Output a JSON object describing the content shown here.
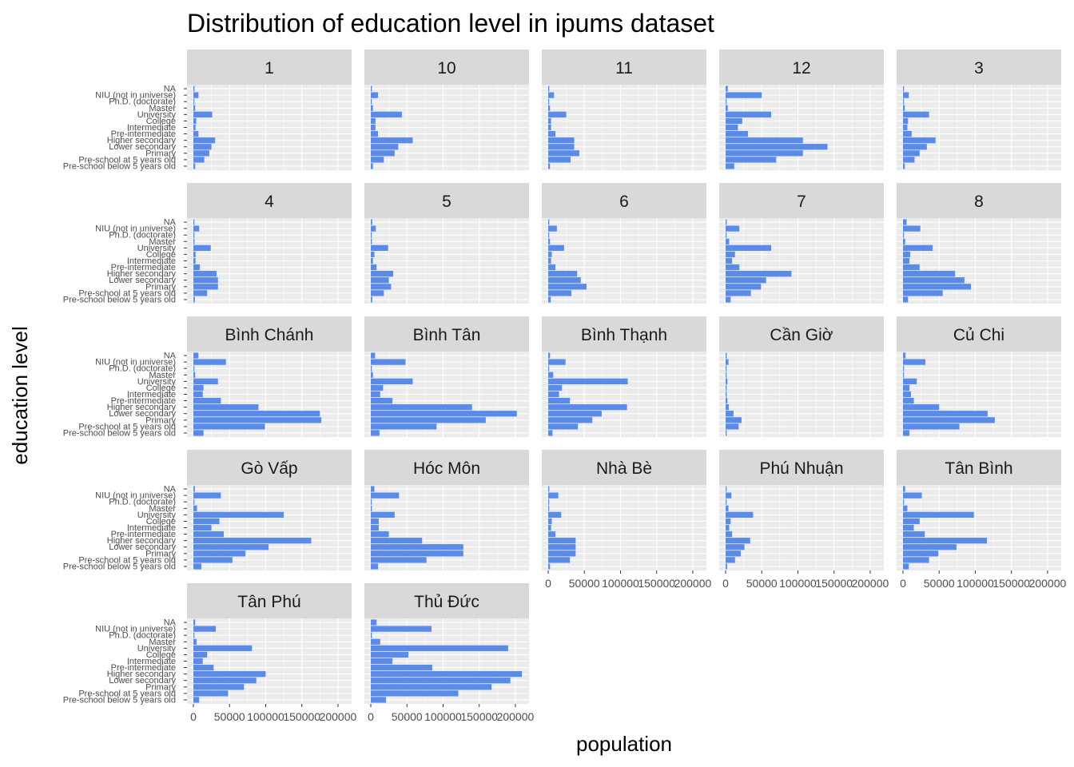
{
  "chart_data": {
    "type": "bar",
    "orientation": "horizontal",
    "title": "Distribution of education level in ipums dataset",
    "xlabel": "population",
    "ylabel": "education level",
    "xlim": [
      0,
      210000
    ],
    "x_ticks": [
      "0",
      "50000",
      "100000",
      "150000",
      "200000"
    ],
    "x_tick_values": [
      0,
      50000,
      100000,
      150000,
      200000
    ],
    "bar_color": "#5B8BE8",
    "panel_background": "#EBEBEB",
    "strip_background": "#D9D9D9",
    "grid": true,
    "categories": [
      "NA",
      "NIU (not in universe)",
      "Ph.D. (doctorate)",
      "Master",
      "University",
      "College",
      "Intermediate",
      "Pre-intermediate",
      "Higher secondary",
      "Lower secondary",
      "Primary",
      "Pre-school at 5 years old",
      "Pre-school below 5 years old"
    ],
    "facets": [
      {
        "name": "1",
        "values": [
          1500,
          7000,
          300,
          2500,
          26000,
          4000,
          3000,
          7000,
          30000,
          25000,
          22000,
          15000,
          2500
        ]
      },
      {
        "name": "10",
        "values": [
          1500,
          10000,
          300,
          3000,
          43000,
          6500,
          6500,
          10000,
          58000,
          38000,
          33000,
          18000,
          3000
        ]
      },
      {
        "name": "11",
        "values": [
          1500,
          8000,
          300,
          2500,
          25000,
          4000,
          4000,
          10000,
          36000,
          36000,
          43000,
          31000,
          2500
        ]
      },
      {
        "name": "12",
        "values": [
          3000,
          50000,
          700,
          3000,
          63000,
          23000,
          17000,
          31000,
          107000,
          141000,
          107000,
          70000,
          12000
        ]
      },
      {
        "name": "3",
        "values": [
          1000,
          8000,
          200,
          2500,
          36000,
          7000,
          6000,
          12000,
          45000,
          33000,
          23000,
          16000,
          2500
        ]
      },
      {
        "name": "4",
        "values": [
          1000,
          8000,
          200,
          1500,
          24000,
          3000,
          3000,
          9000,
          32000,
          34000,
          34000,
          19000,
          2000
        ]
      },
      {
        "name": "5",
        "values": [
          2000,
          7000,
          300,
          1500,
          24000,
          5000,
          3000,
          8000,
          31000,
          25000,
          28000,
          18000,
          2000
        ]
      },
      {
        "name": "6",
        "values": [
          1500,
          12000,
          200,
          2500,
          22000,
          5000,
          4000,
          10000,
          40000,
          45000,
          53000,
          32000,
          3500
        ]
      },
      {
        "name": "7",
        "values": [
          1500,
          19000,
          500,
          5000,
          63000,
          13000,
          9000,
          19000,
          91000,
          56000,
          49000,
          35000,
          7000
        ]
      },
      {
        "name": "8",
        "values": [
          5000,
          24000,
          500,
          3000,
          41000,
          10000,
          9000,
          23000,
          72000,
          85000,
          94000,
          55000,
          7000
        ]
      },
      {
        "name": "Bình Chánh",
        "values": [
          7000,
          45000,
          700,
          2500,
          34000,
          14000,
          13000,
          38000,
          90000,
          175000,
          177000,
          99000,
          14000
        ]
      },
      {
        "name": "Bình Tân",
        "values": [
          6000,
          48000,
          1000,
          3000,
          58000,
          17000,
          13000,
          30000,
          140000,
          202000,
          159000,
          91000,
          12000
        ]
      },
      {
        "name": "Bình Thạnh",
        "values": [
          2500,
          24000,
          500,
          7000,
          110000,
          19000,
          15000,
          30000,
          109000,
          74000,
          61000,
          41000,
          6000
        ]
      },
      {
        "name": "Cần Giờ",
        "values": [
          1500,
          4000,
          100,
          300,
          2500,
          1500,
          1500,
          2500,
          4500,
          11000,
          22000,
          18000,
          1500
        ]
      },
      {
        "name": "Củ Chi",
        "values": [
          3500,
          31000,
          200,
          1000,
          19000,
          9000,
          11000,
          15000,
          50000,
          117000,
          127000,
          78000,
          9000
        ]
      },
      {
        "name": "Gò Vấp",
        "values": [
          2000,
          38000,
          800,
          5000,
          125000,
          36000,
          25000,
          42000,
          163000,
          104000,
          72000,
          54000,
          11000
        ]
      },
      {
        "name": "Hóc Môn",
        "values": [
          5000,
          39000,
          300,
          1500,
          33000,
          11000,
          11000,
          25000,
          71000,
          128000,
          128000,
          77000,
          10000
        ]
      },
      {
        "name": "Nhà Bè",
        "values": [
          1500,
          14000,
          200,
          500,
          18000,
          5000,
          4000,
          10000,
          38000,
          38000,
          38000,
          30000,
          2500
        ]
      },
      {
        "name": "Phú Nhuận",
        "values": [
          1000,
          8000,
          300,
          4000,
          38000,
          7000,
          5000,
          9000,
          34000,
          26000,
          21000,
          13000,
          2000
        ]
      },
      {
        "name": "Tân Bình",
        "values": [
          3000,
          26000,
          800,
          6000,
          98000,
          23000,
          15000,
          30000,
          116000,
          74000,
          49000,
          36000,
          8000
        ]
      },
      {
        "name": "Tân Phú",
        "values": [
          2500,
          31000,
          600,
          4500,
          81000,
          19000,
          13000,
          28000,
          100000,
          87000,
          70000,
          48000,
          8000
        ]
      },
      {
        "name": "Thủ Đức",
        "values": [
          8000,
          84000,
          1500,
          13000,
          190000,
          52000,
          30000,
          85000,
          209000,
          193000,
          167000,
          121000,
          21000
        ]
      }
    ]
  }
}
